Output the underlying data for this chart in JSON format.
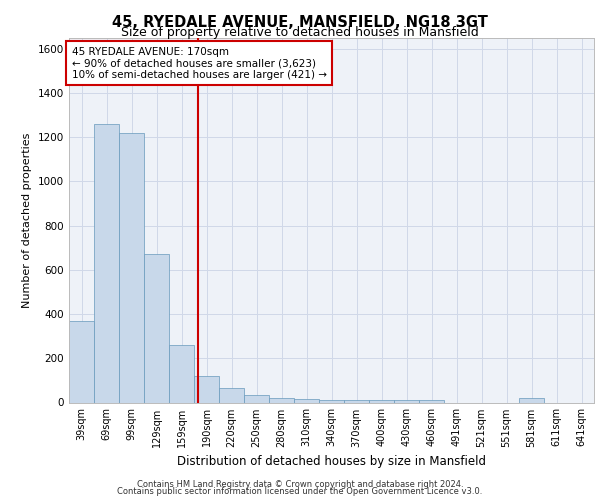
{
  "title1": "45, RYEDALE AVENUE, MANSFIELD, NG18 3GT",
  "title2": "Size of property relative to detached houses in Mansfield",
  "xlabel": "Distribution of detached houses by size in Mansfield",
  "ylabel": "Number of detached properties",
  "footer1": "Contains HM Land Registry data © Crown copyright and database right 2024.",
  "footer2": "Contains public sector information licensed under the Open Government Licence v3.0.",
  "annotation_line1": "45 RYEDALE AVENUE: 170sqm",
  "annotation_line2": "← 90% of detached houses are smaller (3,623)",
  "annotation_line3": "10% of semi-detached houses are larger (421) →",
  "bar_color": "#c8d8ea",
  "bar_edge_color": "#6699bb",
  "redline_color": "#cc0000",
  "categories": [
    "39sqm",
    "69sqm",
    "99sqm",
    "129sqm",
    "159sqm",
    "190sqm",
    "220sqm",
    "250sqm",
    "280sqm",
    "310sqm",
    "340sqm",
    "370sqm",
    "400sqm",
    "430sqm",
    "460sqm",
    "491sqm",
    "521sqm",
    "551sqm",
    "581sqm",
    "611sqm",
    "641sqm"
  ],
  "values": [
    370,
    1260,
    1220,
    670,
    260,
    120,
    65,
    35,
    22,
    15,
    12,
    10,
    10,
    10,
    10,
    0,
    0,
    0,
    20,
    0,
    0
  ],
  "ylim": [
    0,
    1650
  ],
  "yticks": [
    0,
    200,
    400,
    600,
    800,
    1000,
    1200,
    1400,
    1600
  ],
  "red_line_x": 4.67,
  "grid_color": "#d0d8e8",
  "bg_color": "#eef2f8",
  "title1_fontsize": 10.5,
  "title2_fontsize": 9,
  "ylabel_fontsize": 8,
  "xlabel_fontsize": 8.5,
  "tick_fontsize": 7,
  "annotation_fontsize": 7.5,
  "footer_fontsize": 6
}
